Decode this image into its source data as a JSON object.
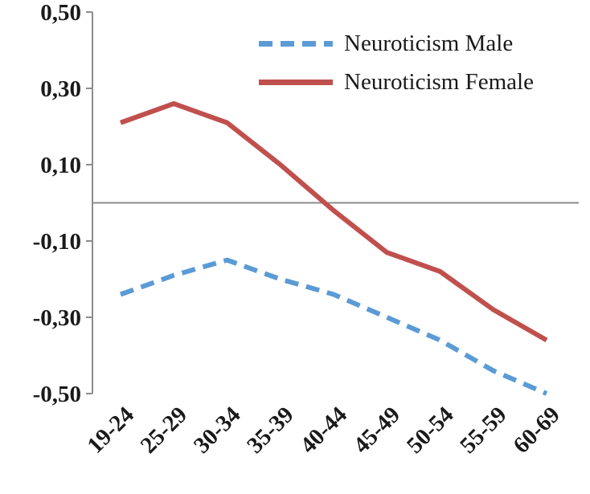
{
  "chart_data": {
    "type": "line",
    "categories": [
      "19-24",
      "25-29",
      "30-34",
      "35-39",
      "40-44",
      "45-49",
      "50-54",
      "55-59",
      "60-69"
    ],
    "series": [
      {
        "name": "Neuroticism Male",
        "color": "#5B9BD5",
        "style": "dashed",
        "values": [
          -0.24,
          -0.19,
          -0.15,
          -0.2,
          -0.24,
          -0.3,
          -0.36,
          -0.44,
          -0.5
        ]
      },
      {
        "name": "Neuroticism Female",
        "color": "#C0504D",
        "style": "solid",
        "values": [
          0.21,
          0.26,
          0.21,
          0.1,
          -0.02,
          -0.13,
          -0.18,
          -0.28,
          -0.36
        ]
      }
    ],
    "y_ticks": [
      {
        "label": "0,50",
        "value": 0.5
      },
      {
        "label": "0,30",
        "value": 0.3
      },
      {
        "label": "0,10",
        "value": 0.1
      },
      {
        "label": "-0,10",
        "value": -0.1
      },
      {
        "label": "-0,30",
        "value": -0.3
      },
      {
        "label": "-0,50",
        "value": -0.5
      }
    ],
    "ylim": [
      -0.5,
      0.5
    ],
    "title": "",
    "xlabel": "",
    "ylabel": "",
    "grid": false,
    "legend_position": "top-right",
    "axis_color": "#8c8c8c",
    "text_color": "#1a1a1a"
  }
}
